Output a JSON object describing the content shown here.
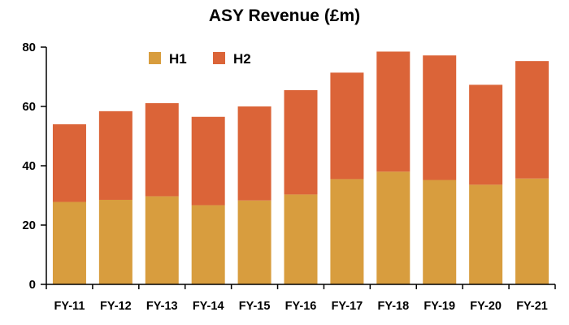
{
  "chart_data": {
    "type": "bar",
    "stacked": true,
    "title": "ASY Revenue (£m)",
    "xlabel": "",
    "ylabel": "",
    "ylim": [
      0,
      80
    ],
    "yticks": [
      0,
      20,
      40,
      60,
      80
    ],
    "grid": false,
    "legend_position": "top-left",
    "categories": [
      "FY-11",
      "FY-12",
      "FY-13",
      "FY-14",
      "FY-15",
      "FY-16",
      "FY-17",
      "FY-18",
      "FY-19",
      "FY-20",
      "FY-21"
    ],
    "series": [
      {
        "name": "H1",
        "color": "#D89D3E",
        "values": [
          27.8,
          28.5,
          29.7,
          26.7,
          28.3,
          30.3,
          35.5,
          38.0,
          35.2,
          33.6,
          35.7
        ]
      },
      {
        "name": "H2",
        "color": "#DB6438",
        "values": [
          26.2,
          29.9,
          31.4,
          29.8,
          31.7,
          35.2,
          35.9,
          40.5,
          42.0,
          33.7,
          39.6
        ]
      }
    ]
  }
}
